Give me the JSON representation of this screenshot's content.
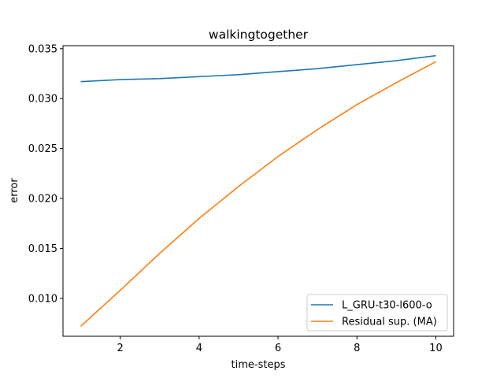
{
  "chart_data": {
    "type": "line",
    "title": "walkingtogether",
    "xlabel": "time-steps",
    "ylabel": "error",
    "x": [
      1,
      2,
      3,
      4,
      5,
      6,
      7,
      8,
      9,
      10
    ],
    "xlim": [
      0.55,
      10.45
    ],
    "ylim": [
      0.0062,
      0.0353
    ],
    "xticks": [
      2,
      4,
      6,
      8,
      10
    ],
    "yticks": [
      0.01,
      0.015,
      0.02,
      0.025,
      0.03,
      0.035
    ],
    "ytick_labels": [
      "0.010",
      "0.015",
      "0.020",
      "0.025",
      "0.030",
      "0.035"
    ],
    "grid": false,
    "legend_position": "lower-right",
    "series": [
      {
        "name": "L_GRU-t30-l600-o",
        "color": "#1f77b4",
        "values": [
          0.0317,
          0.0319,
          0.032,
          0.0322,
          0.0324,
          0.0327,
          0.033,
          0.0334,
          0.0338,
          0.0343
        ]
      },
      {
        "name": "Residual sup. (MA)",
        "color": "#ff7f0e",
        "values": [
          0.0072,
          0.0108,
          0.0145,
          0.018,
          0.0212,
          0.0242,
          0.0269,
          0.0294,
          0.0316,
          0.0337
        ]
      }
    ]
  }
}
